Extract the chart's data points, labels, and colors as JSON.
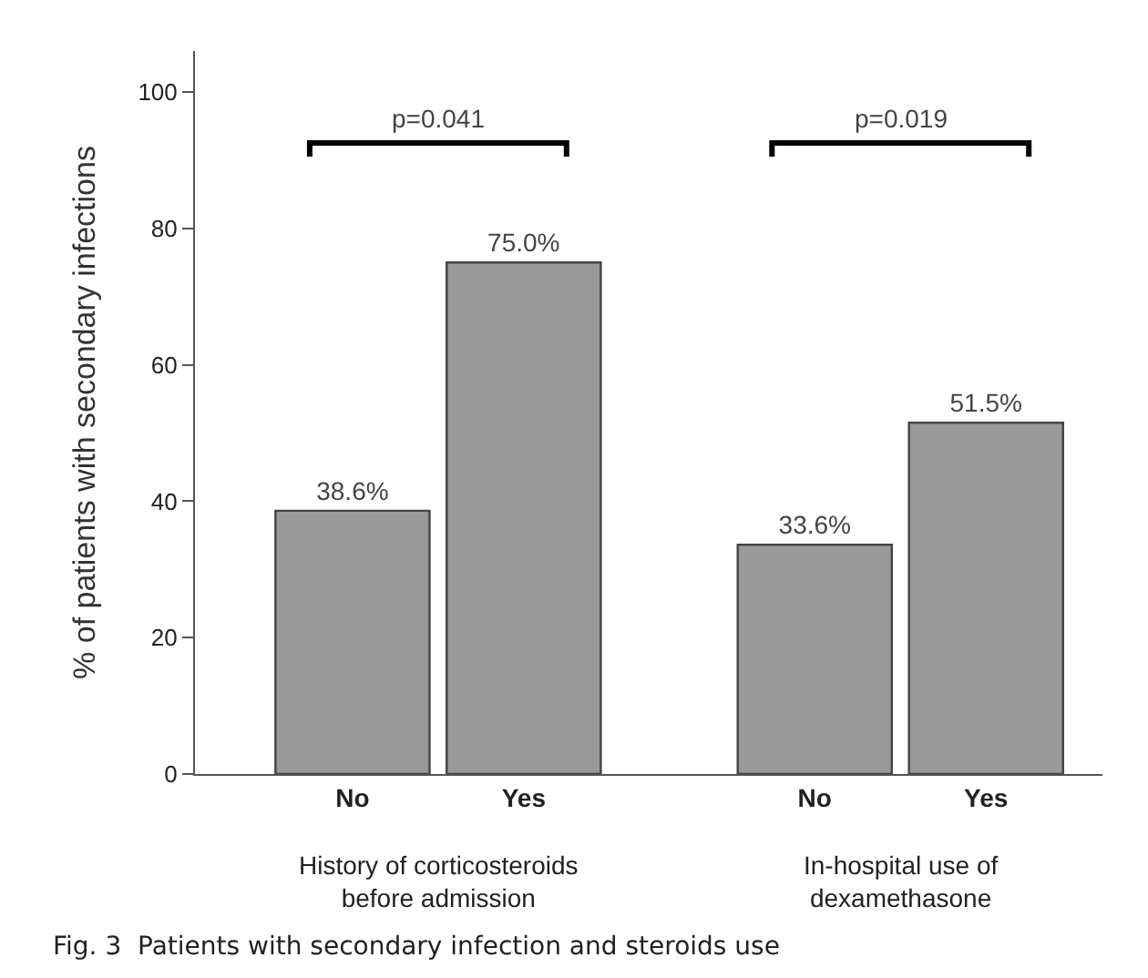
{
  "chart_data": {
    "type": "bar",
    "ylabel": "% of patients with secondary infections",
    "categories": [
      "No",
      "Yes",
      "No",
      "Yes"
    ],
    "values": [
      38.6,
      75.0,
      33.6,
      51.5
    ],
    "value_labels": [
      "38.6%",
      "75.0%",
      "33.6%",
      "51.5%"
    ],
    "color": "#999999",
    "ylim": [
      0,
      106
    ],
    "yticks": [
      0,
      20,
      40,
      60,
      80,
      100
    ],
    "annotations": [
      "p=0.041",
      "p=0.019",
      "History of corticosteroids\nbefore admission",
      "In-hospital use of\ndexamethasone",
      "Fig. 3  Patients with secondary infection and steroids use"
    ]
  }
}
